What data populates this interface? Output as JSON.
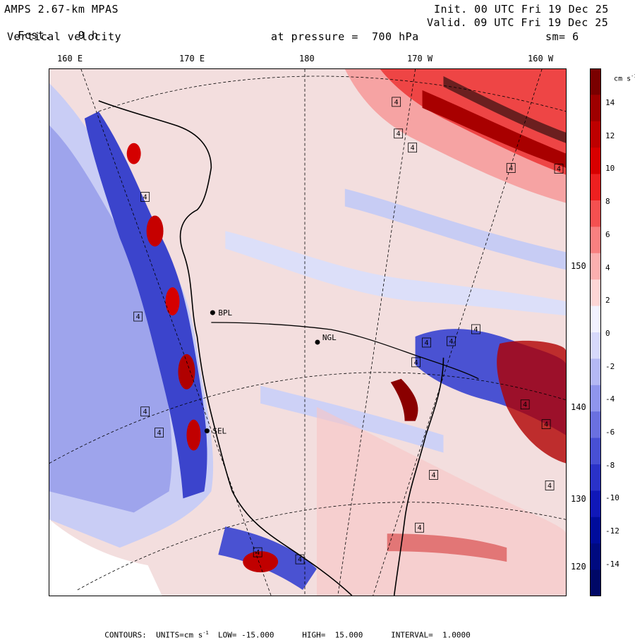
{
  "header": {
    "model": "AMPS 2.67-km MPAS",
    "forecast_label": "Fcst.",
    "forecast_value": "9 h",
    "field": "Vertical velocity",
    "init": "Init. 00 UTC Fri 19 Dec 25",
    "valid": "Valid. 09 UTC Fri 19 Dec 25",
    "level": "at pressure =  700 hPa",
    "smoothing": "sm= 6"
  },
  "lon_labels": [
    "160 E",
    "170 E",
    "180",
    "170 W",
    "160 W"
  ],
  "lat_labels": [
    "150 W",
    "140 W",
    "130 W",
    "120 W"
  ],
  "stations": [
    "BPL",
    "NGL",
    "SEL"
  ],
  "contour_box_label": "4",
  "colorbar": {
    "unit": "cm s",
    "unit_exp": "-1",
    "ticks": [
      "14",
      "12",
      "10",
      "8",
      "6",
      "4",
      "2",
      "0",
      "-2",
      "-4",
      "-6",
      "-8",
      "-10",
      "-12",
      "-14"
    ],
    "colors": [
      "#7a0000",
      "#9e0000",
      "#be0000",
      "#d80000",
      "#ee2020",
      "#f55050",
      "#f88080",
      "#fbafaf",
      "#fdd6d6",
      "#f2f2ff",
      "#d7d9fb",
      "#b4b8f4",
      "#8f95ec",
      "#6a70e0",
      "#4850d4",
      "#2a32c8",
      "#1018b8",
      "#000c9c",
      "#000a80",
      "#000866"
    ]
  },
  "footer": {
    "contours_label": "CONTOURS:",
    "units_label": "UNITS=cm s",
    "units_exp": "-1",
    "low_label": "LOW=",
    "low_value": "-15.000",
    "high_label": "HIGH=",
    "high_value": "15.000",
    "interval_label": "INTERVAL=",
    "interval_value": "1.0000"
  }
}
